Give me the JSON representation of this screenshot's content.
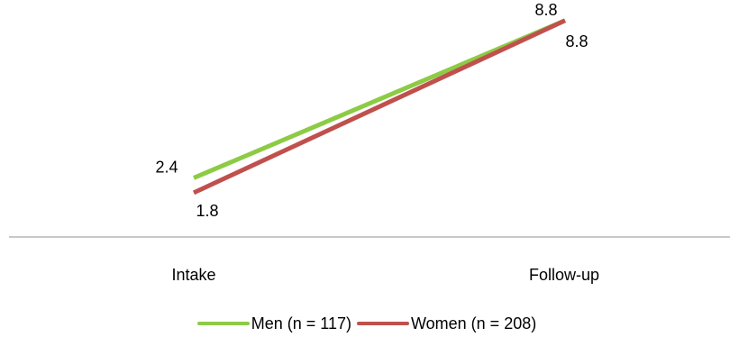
{
  "chart_data": {
    "type": "line",
    "title": "",
    "xlabel": "",
    "ylabel": "",
    "categories": [
      "Intake",
      "Follow-up"
    ],
    "ylim": [
      0,
      10
    ],
    "grid": false,
    "legend_position": "bottom",
    "series": [
      {
        "name": "Men (n = 117)",
        "values": [
          2.4,
          8.8
        ],
        "labels": [
          "2.4",
          "8.8"
        ],
        "color": "#8DCB45"
      },
      {
        "name": "Women (n = 208)",
        "values": [
          1.8,
          8.8
        ],
        "labels": [
          "1.8",
          "8.8"
        ],
        "color": "#C0504D"
      }
    ]
  },
  "colors": {
    "axis": "#a6a6a6"
  }
}
